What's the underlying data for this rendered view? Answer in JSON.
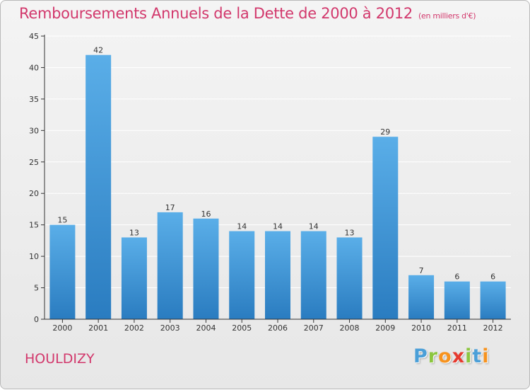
{
  "title": "Remboursements Annuels de la Dette de 2000 à 2012",
  "subtitle": "(en milliers d'€)",
  "commune": "HOULDIZY",
  "logo": {
    "letters": [
      "P",
      "r",
      "o",
      "x",
      "i",
      "t",
      "i"
    ],
    "colors": [
      "#4a9fd8",
      "#8cc63f",
      "#f7931e",
      "#e63a2e",
      "#8cc63f",
      "#4a9fd8",
      "#f7931e"
    ]
  },
  "colors": {
    "title": "#d2386c",
    "bar_top": "#5aaee8",
    "bar_bottom": "#2a7cc0",
    "axis": "#333333",
    "grid": "#ffffff"
  },
  "chart_data": {
    "type": "bar",
    "categories": [
      "2000",
      "2001",
      "2002",
      "2003",
      "2004",
      "2005",
      "2006",
      "2007",
      "2008",
      "2009",
      "2010",
      "2011",
      "2012"
    ],
    "values": [
      15,
      42,
      13,
      17,
      16,
      14,
      14,
      14,
      13,
      29,
      7,
      6,
      6
    ],
    "value_labels": [
      "15",
      "42",
      "13",
      "17",
      "16",
      "14",
      "14",
      "14",
      "13",
      "29",
      "7",
      "6",
      "6"
    ],
    "yticks": [
      "0",
      "5",
      "10",
      "15",
      "20",
      "25",
      "30",
      "35",
      "40",
      "45"
    ],
    "ylim": [
      0,
      45
    ],
    "grid": true,
    "legend": false
  }
}
